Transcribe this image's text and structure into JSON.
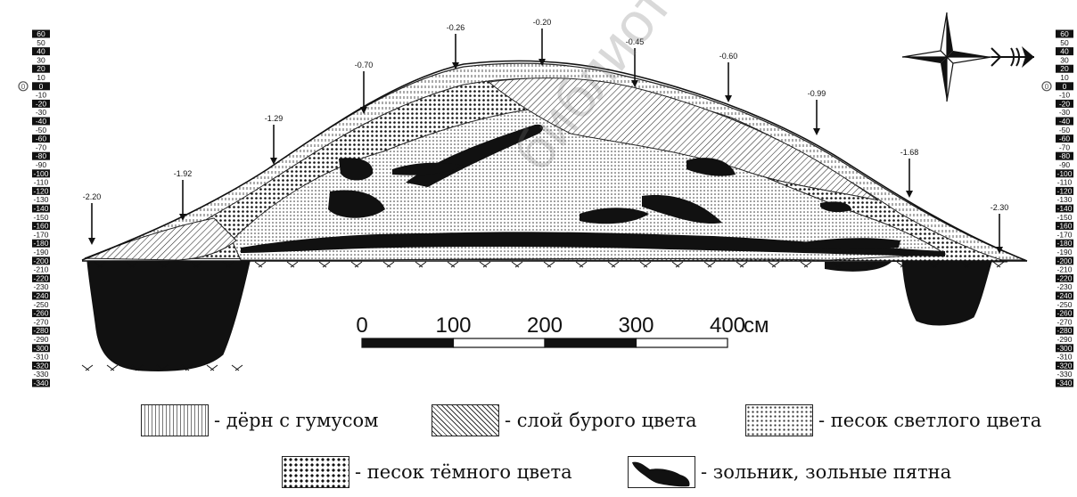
{
  "ruler": {
    "marks": [
      "60",
      "50",
      "40",
      "30",
      "20",
      "10",
      "0",
      "-10",
      "-20",
      "-30",
      "-40",
      "-50",
      "-60",
      "-70",
      "-80",
      "-90",
      "-100",
      "-110",
      "-120",
      "-130",
      "-140",
      "-150",
      "-160",
      "-170",
      "-180",
      "-190",
      "-200",
      "-210",
      "-220",
      "-230",
      "-240",
      "-250",
      "-260",
      "-270",
      "-280",
      "-290",
      "-300",
      "-310",
      "-320",
      "-330",
      "-340"
    ],
    "zero_label": "0"
  },
  "depth_markers": [
    {
      "label": "-2.20"
    },
    {
      "label": "-1.92"
    },
    {
      "label": "-1.29"
    },
    {
      "label": "-0.70"
    },
    {
      "label": "-0.26"
    },
    {
      "label": "-0.20"
    },
    {
      "label": "-0.45"
    },
    {
      "label": "-0.60"
    },
    {
      "label": "-0.99"
    },
    {
      "label": "-1.68"
    },
    {
      "label": "-2.30"
    }
  ],
  "scale_bar": {
    "labels": [
      "0",
      "100",
      "200",
      "300",
      "400"
    ],
    "unit": "см"
  },
  "legend": [
    {
      "key": "sod",
      "label": "- дёрн с гумусом"
    },
    {
      "key": "brown",
      "label": "- слой бурого цвета"
    },
    {
      "key": "light_sand",
      "label": "- песок светлого цвета"
    },
    {
      "key": "dark_sand",
      "label": "- песок тёмного цвета"
    },
    {
      "key": "ash",
      "label": "- зольник, зольные пятна"
    }
  ],
  "watermark": "библиотеки МГУ имени А.А.",
  "icons": [
    "compass-rose-icon",
    "north-arrow-icon"
  ]
}
